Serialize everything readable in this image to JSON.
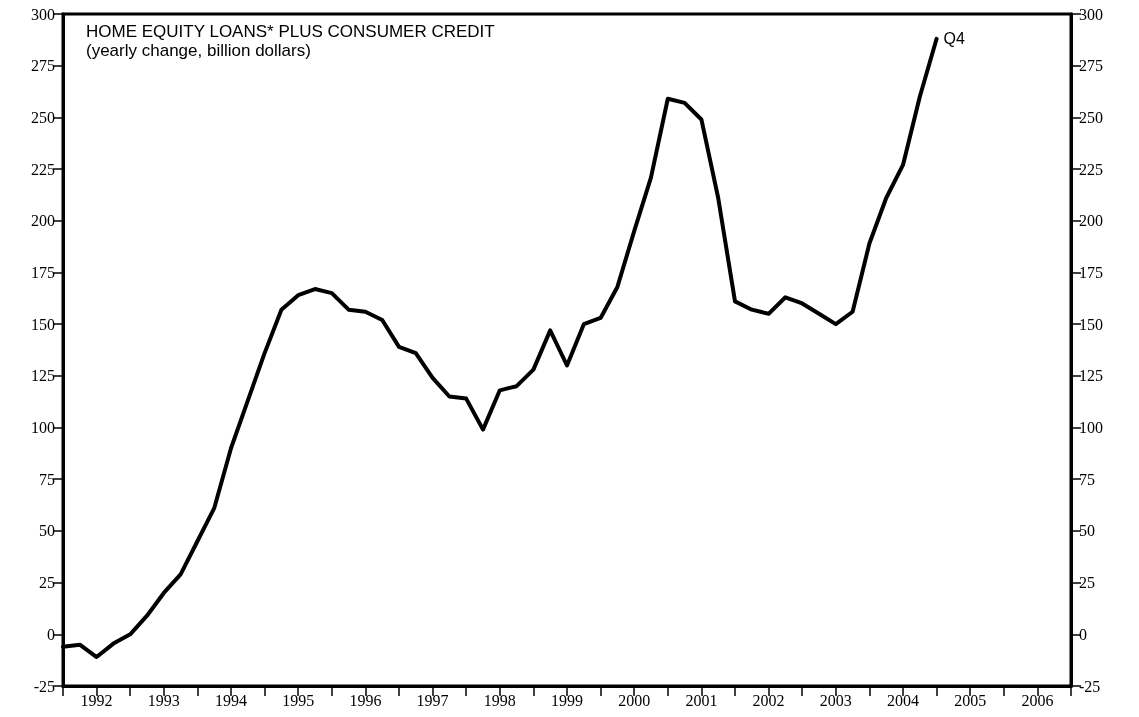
{
  "chart_data": {
    "type": "line",
    "title": "HOME EQUITY LOANS* PLUS CONSUMER CREDIT",
    "subtitle": "(yearly change, billion dollars)",
    "x": [
      1992.0,
      1992.25,
      1992.5,
      1992.75,
      1993.0,
      1993.25,
      1993.5,
      1993.75,
      1994.0,
      1994.25,
      1994.5,
      1994.75,
      1995.0,
      1995.25,
      1995.5,
      1995.75,
      1996.0,
      1996.25,
      1996.5,
      1996.75,
      1997.0,
      1997.25,
      1997.5,
      1997.75,
      1998.0,
      1998.25,
      1998.5,
      1998.75,
      1999.0,
      1999.25,
      1999.5,
      1999.75,
      2000.0,
      2000.25,
      2000.5,
      2000.75,
      2001.0,
      2001.25,
      2001.5,
      2001.75,
      2002.0,
      2002.25,
      2002.5,
      2002.75,
      2003.0,
      2003.25,
      2003.5,
      2003.75,
      2004.0,
      2004.25,
      2004.5,
      2004.75,
      2005.0
    ],
    "series": [
      {
        "color": "#000000",
        "values": [
          -6,
          -5,
          -11,
          -4.5,
          0,
          9,
          20,
          29,
          45,
          61,
          90,
          113,
          136,
          157,
          164,
          167,
          165,
          157,
          156,
          152,
          139,
          136,
          124,
          115,
          114,
          99,
          118,
          120,
          128,
          147,
          130,
          150,
          153,
          168,
          195,
          221,
          259,
          257,
          249,
          211,
          161,
          157,
          155,
          163,
          160,
          155,
          150,
          156,
          189,
          211,
          227,
          260,
          288
        ]
      }
    ],
    "annotations": [
      {
        "text": "Q4",
        "x": 2005.0,
        "y": 288
      }
    ],
    "xlim": [
      1992,
      2007
    ],
    "xticks": [
      {
        "value": 1992,
        "label": null
      },
      {
        "value": 1992.5,
        "label": "1992"
      },
      {
        "value": 1993,
        "label": null
      },
      {
        "value": 1993.5,
        "label": "1993"
      },
      {
        "value": 1994,
        "label": null
      },
      {
        "value": 1994.5,
        "label": "1994"
      },
      {
        "value": 1995,
        "label": null
      },
      {
        "value": 1995.5,
        "label": "1995"
      },
      {
        "value": 1996,
        "label": null
      },
      {
        "value": 1996.5,
        "label": "1996"
      },
      {
        "value": 1997,
        "label": null
      },
      {
        "value": 1997.5,
        "label": "1997"
      },
      {
        "value": 1998,
        "label": null
      },
      {
        "value": 1998.5,
        "label": "1998"
      },
      {
        "value": 1999,
        "label": null
      },
      {
        "value": 1999.5,
        "label": "1999"
      },
      {
        "value": 2000,
        "label": null
      },
      {
        "value": 2000.5,
        "label": "2000"
      },
      {
        "value": 2001,
        "label": null
      },
      {
        "value": 2001.5,
        "label": "2001"
      },
      {
        "value": 2002,
        "label": null
      },
      {
        "value": 2002.5,
        "label": "2002"
      },
      {
        "value": 2003,
        "label": null
      },
      {
        "value": 2003.5,
        "label": "2003"
      },
      {
        "value": 2004,
        "label": null
      },
      {
        "value": 2004.5,
        "label": "2004"
      },
      {
        "value": 2005,
        "label": null
      },
      {
        "value": 2005.5,
        "label": "2005"
      },
      {
        "value": 2006,
        "label": null
      },
      {
        "value": 2006.5,
        "label": "2006"
      },
      {
        "value": 2007,
        "label": null
      }
    ],
    "ylim": [
      -25,
      300
    ],
    "yticks": [
      -25,
      0,
      25,
      50,
      75,
      100,
      125,
      150,
      175,
      200,
      225,
      250,
      275,
      300
    ],
    "y2lim": [
      -25,
      300
    ],
    "y2ticks": [
      -25,
      0,
      25,
      50,
      75,
      100,
      125,
      150,
      175,
      200,
      225,
      250,
      275,
      300
    ],
    "marker": "none",
    "line_style": "solid"
  }
}
